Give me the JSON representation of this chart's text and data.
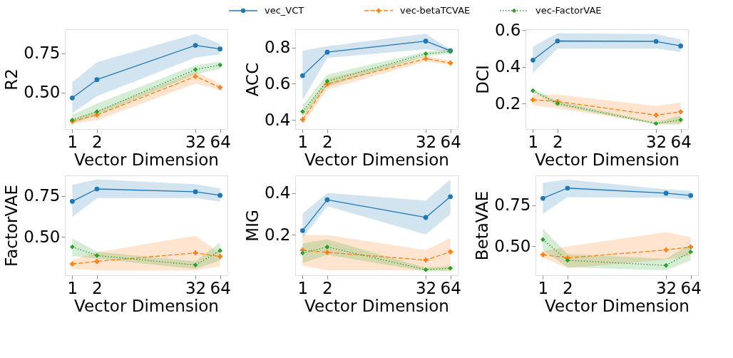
{
  "chart_data": [
    {
      "type": "line",
      "ylabel": "R2",
      "xlabel": "Vector Dimension",
      "x": [
        1,
        2,
        32,
        64
      ],
      "log": "x",
      "xlim": [
        0.812,
        78.8
      ],
      "xticks": [
        1,
        2,
        32,
        64
      ],
      "ylim": [
        0.266,
        0.904
      ],
      "yticks": [
        {
          "value": 0.5,
          "label": "0.50"
        },
        {
          "value": 0.75,
          "label": "0.75"
        }
      ],
      "legend": "top",
      "grid": false,
      "series": [
        {
          "name": "vec_VCT",
          "color": "#1f77b4",
          "marker": "circle",
          "line_style": "solid",
          "values": [
            0.465,
            0.582,
            0.801,
            0.778
          ],
          "lower": [
            0.369,
            0.476,
            0.723,
            0.743
          ],
          "upper": [
            0.566,
            0.693,
            0.874,
            0.81
          ]
        },
        {
          "name": "vec-betaTCVAE",
          "color": "#ff7f0e",
          "marker": "cross",
          "line_style": "dashed",
          "values": [
            0.316,
            0.356,
            0.602,
            0.532
          ],
          "lower": [
            0.3,
            0.322,
            0.556,
            0.516
          ],
          "upper": [
            0.329,
            0.382,
            0.634,
            0.556
          ]
        },
        {
          "name": "vec-FactorVAE",
          "color": "#2ca02c",
          "marker": "diamond",
          "line_style": "dotted",
          "values": [
            0.324,
            0.377,
            0.646,
            0.676
          ],
          "lower": [
            0.3,
            0.356,
            0.616,
            0.65
          ],
          "upper": [
            0.356,
            0.429,
            0.674,
            0.697
          ]
        }
      ]
    },
    {
      "type": "line",
      "ylabel": "ACC",
      "xlabel": "Vector Dimension",
      "x": [
        1,
        2,
        32,
        64
      ],
      "log": "x",
      "xlim": [
        0.812,
        78.8
      ],
      "xticks": [
        1,
        2,
        32,
        64
      ],
      "ylim": [
        0.349,
        0.902
      ],
      "yticks": [
        {
          "value": 0.4,
          "label": "0.4"
        },
        {
          "value": 0.6,
          "label": "0.6"
        },
        {
          "value": 0.8,
          "label": "0.8"
        }
      ],
      "grid": false,
      "series": [
        {
          "color": "#1f77b4",
          "marker": "circle",
          "line_style": "solid",
          "values": [
            0.645,
            0.775,
            0.836,
            0.783
          ],
          "lower": [
            0.51,
            0.743,
            0.791,
            0.776
          ],
          "upper": [
            0.783,
            0.808,
            0.877,
            0.789
          ]
        },
        {
          "color": "#ff7f0e",
          "marker": "cross",
          "line_style": "dashed",
          "values": [
            0.402,
            0.599,
            0.739,
            0.715
          ],
          "lower": [
            0.375,
            0.568,
            0.723,
            0.706
          ],
          "upper": [
            0.43,
            0.629,
            0.754,
            0.728
          ]
        },
        {
          "color": "#2ca02c",
          "marker": "diamond",
          "line_style": "dotted",
          "values": [
            0.446,
            0.614,
            0.766,
            0.778
          ],
          "lower": [
            0.419,
            0.585,
            0.752,
            0.767
          ],
          "upper": [
            0.48,
            0.651,
            0.778,
            0.791
          ]
        }
      ]
    },
    {
      "type": "line",
      "ylabel": "DCI",
      "xlabel": "Vector Dimension",
      "x": [
        1,
        2,
        32,
        64
      ],
      "log": "x",
      "xlim": [
        0.812,
        78.8
      ],
      "xticks": [
        1,
        2,
        32,
        64
      ],
      "ylim": [
        0.061,
        0.604
      ],
      "yticks": [
        {
          "value": 0.2,
          "label": "0.2"
        },
        {
          "value": 0.4,
          "label": "0.4"
        },
        {
          "value": 0.6,
          "label": "0.6"
        }
      ],
      "grid": false,
      "series": [
        {
          "color": "#1f77b4",
          "marker": "circle",
          "line_style": "solid",
          "values": [
            0.436,
            0.54,
            0.538,
            0.513
          ],
          "lower": [
            0.365,
            0.499,
            0.499,
            0.48
          ],
          "upper": [
            0.51,
            0.583,
            0.578,
            0.548
          ]
        },
        {
          "color": "#ff7f0e",
          "marker": "cross",
          "line_style": "dashed",
          "values": [
            0.22,
            0.211,
            0.137,
            0.155
          ],
          "lower": [
            0.191,
            0.173,
            0.091,
            0.091
          ],
          "upper": [
            0.249,
            0.249,
            0.187,
            0.205
          ]
        },
        {
          "color": "#2ca02c",
          "marker": "diamond",
          "line_style": "dotted",
          "values": [
            0.27,
            0.2,
            0.091,
            0.111
          ],
          "lower": [
            0.26,
            0.189,
            0.086,
            0.086
          ],
          "upper": [
            0.278,
            0.213,
            0.097,
            0.137
          ]
        }
      ]
    },
    {
      "type": "line",
      "ylabel": "FactorVAE",
      "xlabel": "Vector Dimension",
      "x": [
        1,
        2,
        32,
        64
      ],
      "log": "x",
      "xlim": [
        0.812,
        78.8
      ],
      "xticks": [
        1,
        2,
        32,
        64
      ],
      "ylim": [
        0.264,
        0.876
      ],
      "yticks": [
        {
          "value": 0.5,
          "label": "0.50"
        },
        {
          "value": 0.75,
          "label": "0.75"
        }
      ],
      "grid": false,
      "series": [
        {
          "color": "#1f77b4",
          "marker": "circle",
          "line_style": "solid",
          "values": [
            0.717,
            0.793,
            0.776,
            0.754
          ],
          "lower": [
            0.62,
            0.737,
            0.737,
            0.715
          ],
          "upper": [
            0.819,
            0.852,
            0.822,
            0.796
          ]
        },
        {
          "color": "#ff7f0e",
          "marker": "cross",
          "line_style": "dashed",
          "values": [
            0.333,
            0.349,
            0.401,
            0.379
          ],
          "lower": [
            0.303,
            0.294,
            0.294,
            0.32
          ],
          "upper": [
            0.359,
            0.405,
            0.507,
            0.398
          ]
        },
        {
          "color": "#2ca02c",
          "marker": "diamond",
          "line_style": "dotted",
          "values": [
            0.438,
            0.385,
            0.327,
            0.415
          ],
          "lower": [
            0.382,
            0.366,
            0.303,
            0.355
          ],
          "upper": [
            0.49,
            0.408,
            0.349,
            0.466
          ]
        }
      ]
    },
    {
      "type": "line",
      "ylabel": "MIG",
      "xlabel": "Vector Dimension",
      "x": [
        1,
        2,
        32,
        64
      ],
      "log": "x",
      "xlim": [
        0.812,
        78.8
      ],
      "xticks": [
        1,
        2,
        32,
        64
      ],
      "ylim": [
        0.005,
        0.485
      ],
      "yticks": [
        {
          "value": 0.2,
          "label": "0.2"
        },
        {
          "value": 0.4,
          "label": "0.4"
        }
      ],
      "grid": false,
      "series": [
        {
          "color": "#1f77b4",
          "marker": "circle",
          "line_style": "solid",
          "values": [
            0.22,
            0.368,
            0.283,
            0.383
          ],
          "lower": [
            0.184,
            0.337,
            0.201,
            0.298
          ],
          "upper": [
            0.301,
            0.401,
            0.364,
            0.466
          ]
        },
        {
          "color": "#ff7f0e",
          "marker": "cross",
          "line_style": "dashed",
          "values": [
            0.126,
            0.115,
            0.078,
            0.118
          ],
          "lower": [
            0.051,
            0.029,
            0.029,
            0.029
          ],
          "upper": [
            0.199,
            0.199,
            0.126,
            0.184
          ]
        },
        {
          "color": "#2ca02c",
          "marker": "diamond",
          "line_style": "dotted",
          "values": [
            0.112,
            0.141,
            0.032,
            0.039
          ],
          "lower": [
            0.063,
            0.104,
            0.024,
            0.024
          ],
          "upper": [
            0.158,
            0.178,
            0.042,
            0.049
          ]
        }
      ]
    },
    {
      "type": "line",
      "ylabel": "BetaVAE",
      "xlabel": "Vector Dimension",
      "x": [
        1,
        2,
        32,
        64
      ],
      "log": "x",
      "xlim": [
        0.812,
        78.8
      ],
      "xticks": [
        1,
        2,
        32,
        64
      ],
      "ylim": [
        0.323,
        0.93
      ],
      "yticks": [
        {
          "value": 0.5,
          "label": "0.50"
        },
        {
          "value": 0.75,
          "label": "0.75"
        }
      ],
      "grid": false,
      "series": [
        {
          "color": "#1f77b4",
          "marker": "circle",
          "line_style": "solid",
          "values": [
            0.791,
            0.853,
            0.822,
            0.808
          ],
          "lower": [
            0.697,
            0.798,
            0.795,
            0.781
          ],
          "upper": [
            0.885,
            0.905,
            0.845,
            0.836
          ]
        },
        {
          "color": "#ff7f0e",
          "marker": "cross",
          "line_style": "dashed",
          "values": [
            0.448,
            0.429,
            0.477,
            0.495
          ],
          "lower": [
            0.43,
            0.366,
            0.418,
            0.443
          ],
          "upper": [
            0.469,
            0.499,
            0.585,
            0.555
          ]
        },
        {
          "color": "#2ca02c",
          "marker": "diamond",
          "line_style": "dotted",
          "values": [
            0.54,
            0.414,
            0.383,
            0.465
          ],
          "lower": [
            0.476,
            0.372,
            0.353,
            0.414
          ],
          "upper": [
            0.607,
            0.452,
            0.424,
            0.514
          ]
        }
      ]
    }
  ]
}
